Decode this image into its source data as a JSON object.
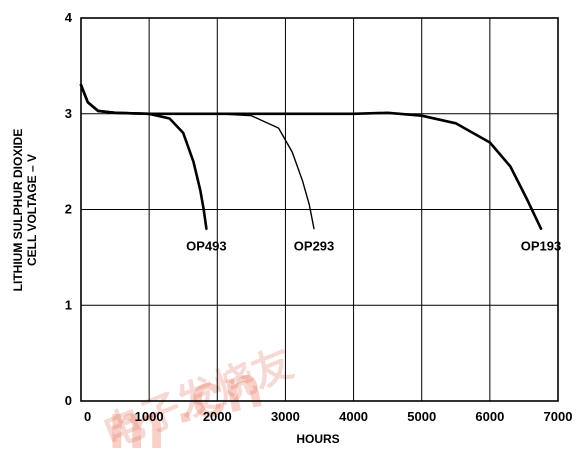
{
  "chart_data": {
    "type": "line",
    "xlabel": "HOURS",
    "ylabel_lines": [
      "LITHIUM SULPHUR DIOXIDE",
      "CELL VOLTAGE – V"
    ],
    "xlim": [
      0,
      7000
    ],
    "ylim": [
      0,
      4
    ],
    "x_ticks": [
      0,
      1000,
      2000,
      3000,
      4000,
      5000,
      6000,
      7000
    ],
    "y_ticks": [
      0,
      1,
      2,
      3,
      4
    ],
    "grid": true,
    "legend": "inline labels at curve ends",
    "series": [
      {
        "name": "OP493",
        "stroke": "thick",
        "x": [
          0,
          100,
          250,
          500,
          1000,
          1300,
          1500,
          1650,
          1750,
          1800,
          1840
        ],
        "y": [
          3.3,
          3.12,
          3.03,
          3.01,
          3.0,
          2.95,
          2.8,
          2.5,
          2.2,
          2.0,
          1.8
        ]
      },
      {
        "name": "OP293",
        "stroke": "thin",
        "x": [
          0,
          100,
          250,
          500,
          1000,
          2000,
          2500,
          2900,
          3100,
          3250,
          3350,
          3420
        ],
        "y": [
          3.3,
          3.12,
          3.03,
          3.01,
          3.0,
          3.0,
          2.98,
          2.85,
          2.6,
          2.3,
          2.05,
          1.8
        ]
      },
      {
        "name": "OP193",
        "stroke": "thick",
        "x": [
          0,
          100,
          250,
          500,
          1000,
          2000,
          3000,
          4000,
          4500,
          5000,
          5500,
          6000,
          6300,
          6550,
          6750
        ],
        "y": [
          3.3,
          3.12,
          3.03,
          3.01,
          3.0,
          3.0,
          3.0,
          3.0,
          3.01,
          2.98,
          2.9,
          2.7,
          2.45,
          2.1,
          1.8
        ]
      }
    ]
  },
  "labels": {
    "y_title_line1": "LITHIUM SULPHUR DIOXIDE",
    "y_title_line2": "CELL VOLTAGE – V",
    "x_title": "HOURS"
  },
  "watermark": {
    "latin": ".cn",
    "latin_partial": "m",
    "cjk": "电子发烧友"
  }
}
